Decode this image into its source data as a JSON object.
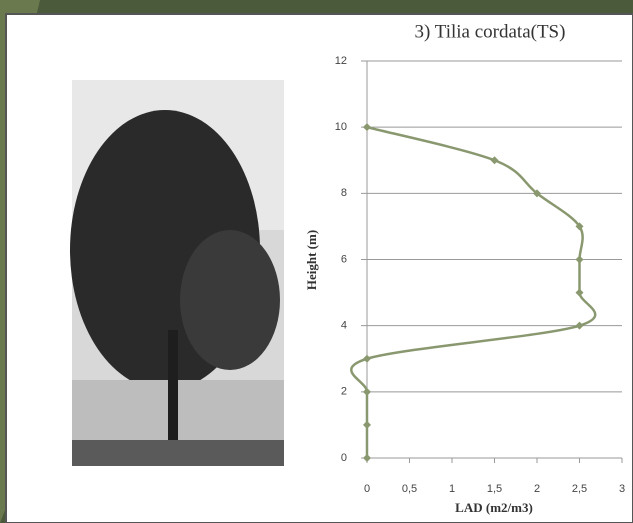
{
  "chart_data": {
    "type": "line",
    "title": "3) Tilia cordata(TS)",
    "x_label": "LAD (m2/m3)",
    "y_label": "Height (m)",
    "x": [
      0,
      0,
      0,
      0,
      2.5,
      2.5,
      2.5,
      2.5,
      2,
      1.5,
      0
    ],
    "series": [
      {
        "color": "#8a9870",
        "values": [
          0,
          1,
          2,
          3,
          4,
          5,
          6,
          7,
          8,
          9,
          10
        ]
      }
    ],
    "xlim": [
      0,
      3
    ],
    "xticks": [
      0,
      {
        "value": 0.5,
        "label": "0,5"
      },
      1,
      {
        "value": 1.5,
        "label": "1,5"
      },
      2,
      {
        "value": 2.5,
        "label": "2,5"
      },
      3
    ],
    "ylim": [
      0,
      12
    ],
    "yticks": [
      0,
      2,
      4,
      6,
      8,
      10,
      12
    ],
    "grid": true
  }
}
